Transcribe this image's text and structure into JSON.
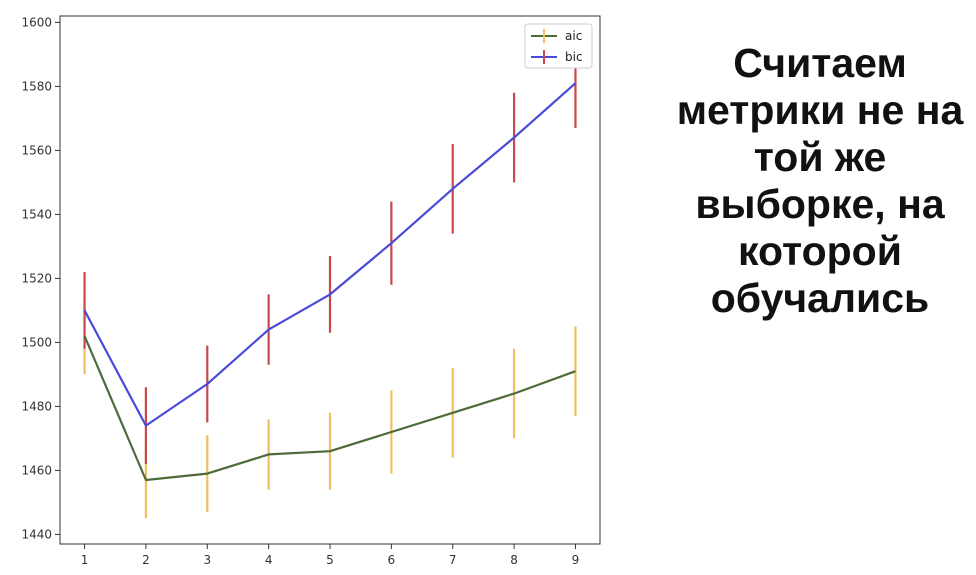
{
  "caption": {
    "lines": [
      "Считаем",
      "метрики не на",
      "той же",
      "выборке, на",
      "которой",
      "обучались"
    ]
  },
  "chart_data": {
    "type": "line",
    "title": "",
    "xlabel": "",
    "ylabel": "",
    "x": [
      1,
      2,
      3,
      4,
      5,
      6,
      7,
      8,
      9
    ],
    "xlim": [
      0.6,
      9.4
    ],
    "ylim": [
      1437,
      1602
    ],
    "yticks": [
      1440,
      1460,
      1480,
      1500,
      1520,
      1540,
      1560,
      1580,
      1600
    ],
    "grid": false,
    "legend": "top-right",
    "series": [
      {
        "name": "aic",
        "color": "#4e6b3a",
        "error_color": "#f0c060",
        "values": [
          1502,
          1457,
          1459,
          1465,
          1466,
          1472,
          1478,
          1484,
          1491
        ],
        "errors": [
          12,
          12,
          12,
          11,
          12,
          13,
          14,
          14,
          14
        ]
      },
      {
        "name": "bic",
        "color": "#4a4ad8",
        "error_color": "#c9484c",
        "values": [
          1510,
          1474,
          1487,
          1504,
          1515,
          1531,
          1548,
          1564,
          1581
        ],
        "errors": [
          12,
          12,
          12,
          11,
          12,
          13,
          14,
          14,
          14
        ]
      }
    ]
  }
}
